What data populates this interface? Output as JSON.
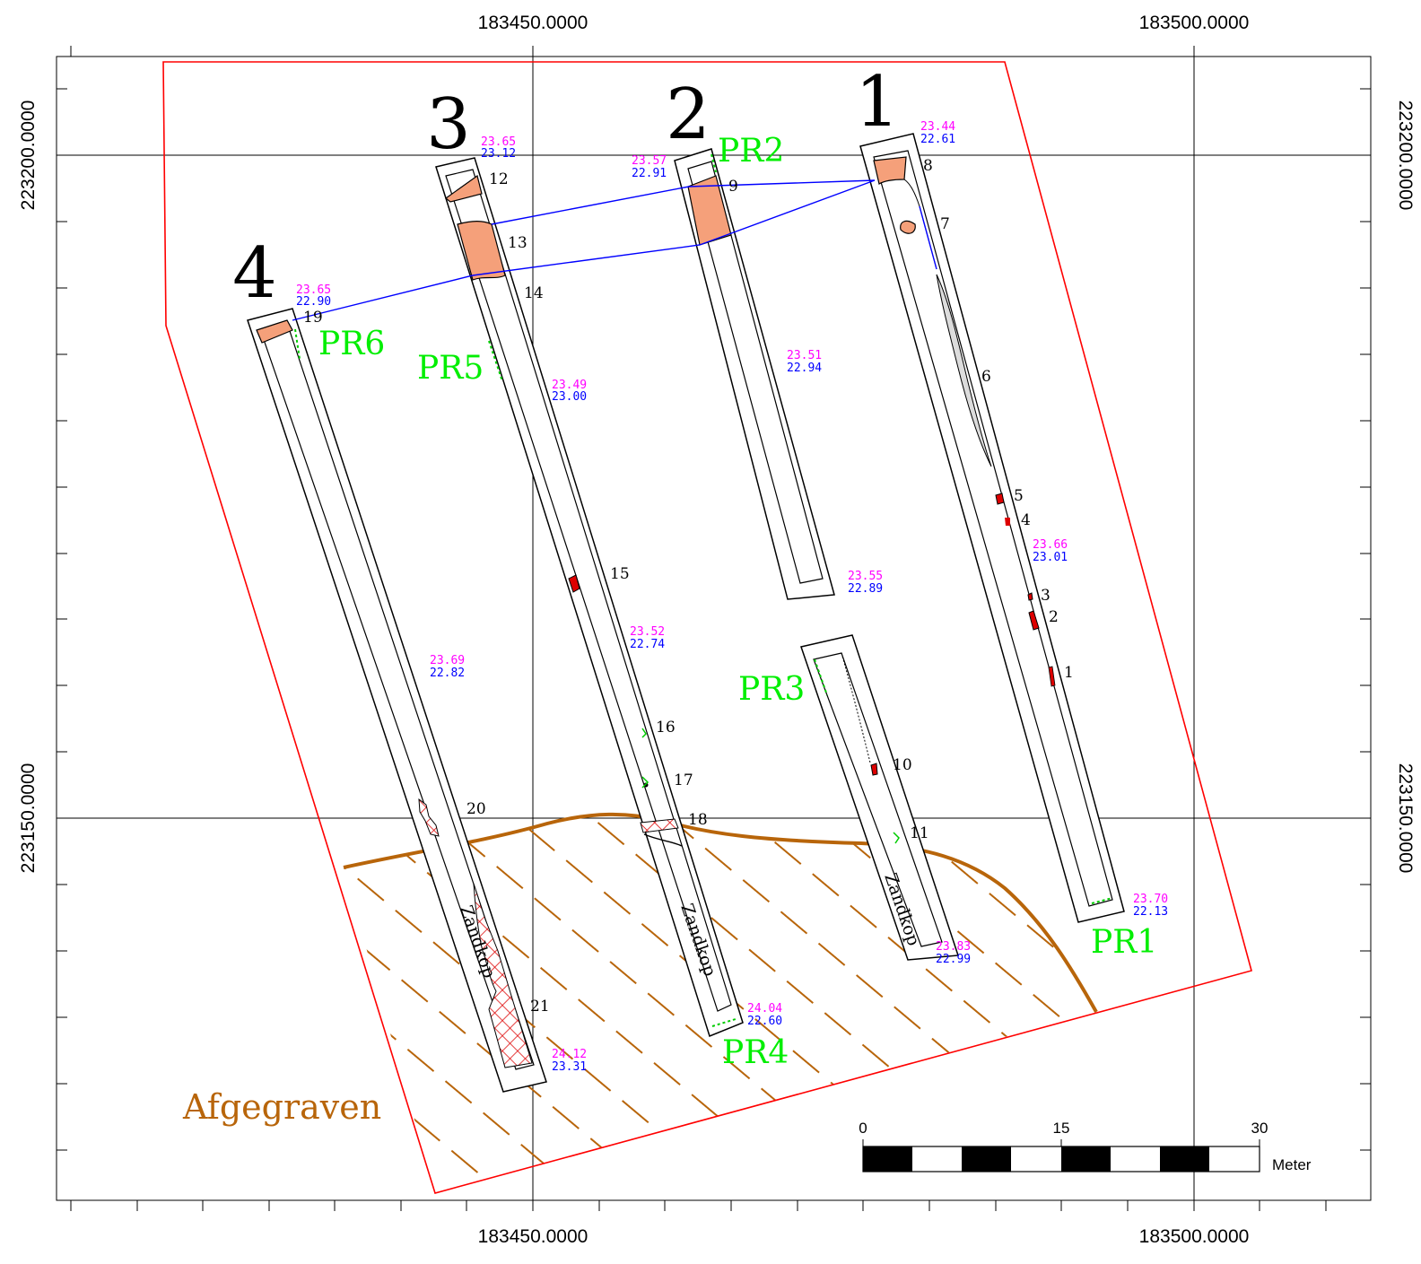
{
  "colors": {
    "boundary": "#ff0000",
    "profile_line": "#0000ff",
    "profile_label": "#00ee00",
    "elev_top": "#ff00ff",
    "elev_bottom": "#0000ff",
    "excavated": "#b8650a",
    "fill_orange": "#f5a07a",
    "feature_red": "#dd0000"
  },
  "grid": {
    "x_labels": [
      "183450.0000",
      "183500.0000"
    ],
    "y_labels": [
      "223200.0000",
      "223150.0000"
    ]
  },
  "trenches": [
    {
      "id": "1"
    },
    {
      "id": "2"
    },
    {
      "id": "3"
    },
    {
      "id": "4"
    }
  ],
  "profiles": [
    "PR1",
    "PR2",
    "PR3",
    "PR4",
    "PR5",
    "PR6"
  ],
  "features": [
    "1",
    "2",
    "3",
    "4",
    "5",
    "6",
    "7",
    "8",
    "9",
    "10",
    "11",
    "12",
    "13",
    "14",
    "15",
    "16",
    "17",
    "18",
    "19",
    "20",
    "21"
  ],
  "elevations": [
    {
      "top": "23.44",
      "bottom": "22.61"
    },
    {
      "top": "23.65",
      "bottom": "23.12"
    },
    {
      "top": "23.57",
      "bottom": "22.91"
    },
    {
      "top": "23.65",
      "bottom": "22.90"
    },
    {
      "top": "23.51",
      "bottom": "22.94"
    },
    {
      "top": "23.49",
      "bottom": "23.00"
    },
    {
      "top": "23.66",
      "bottom": "23.01"
    },
    {
      "top": "23.55",
      "bottom": "22.89"
    },
    {
      "top": "23.52",
      "bottom": "22.74"
    },
    {
      "top": "23.69",
      "bottom": "22.82"
    },
    {
      "top": "23.70",
      "bottom": "22.13"
    },
    {
      "top": "23.83",
      "bottom": "22.99"
    },
    {
      "top": "24.04",
      "bottom": "22.60"
    },
    {
      "top": "24.12",
      "bottom": "23.31"
    }
  ],
  "zandkop_label": "Zandkop",
  "excavated_label": "Afgegraven",
  "scale": {
    "ticks": [
      "0",
      "15",
      "30"
    ],
    "unit": "Meter"
  }
}
